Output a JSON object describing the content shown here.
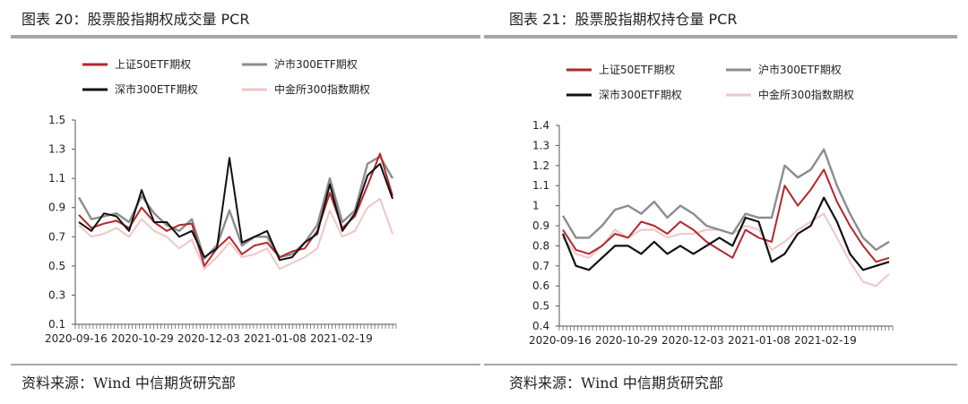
{
  "charts": [
    {
      "title": "图表 20：股票股指期权成交量 PCR",
      "source": "资料来源：Wind  中信期货研究部"
    },
    {
      "title": "图表 21：股票股指期权持仓量 PCR",
      "source": "资料来源：Wind  中信期货研究部"
    }
  ],
  "chart_data": [
    {
      "type": "line",
      "title": "图表 20：股票股指期权成交量 PCR",
      "ylim": [
        0.1,
        1.5
      ],
      "yticks": [
        "0.1",
        "0.3",
        "0.5",
        "0.7",
        "0.9",
        "1.1",
        "1.3",
        "1.5"
      ],
      "xticks": [
        "2020-09-16",
        "2020-10-29",
        "2020-12-03",
        "2021-01-08",
        "2021-02-19"
      ],
      "legend": "top, two columns",
      "grid": false,
      "x_count": 26,
      "series": [
        {
          "name": "上证50ETF期权",
          "color": "#b3272c",
          "width": 2,
          "values": [
            0.85,
            0.76,
            0.79,
            0.81,
            0.76,
            0.9,
            0.8,
            0.74,
            0.78,
            0.79,
            0.5,
            0.62,
            0.7,
            0.58,
            0.64,
            0.66,
            0.56,
            0.6,
            0.62,
            0.74,
            1.0,
            0.76,
            0.84,
            1.05,
            1.27,
            0.98
          ]
        },
        {
          "name": "沪市300ETF期权",
          "color": "#8c8c8c",
          "width": 2.4,
          "values": [
            0.97,
            0.82,
            0.84,
            0.86,
            0.8,
            0.98,
            0.86,
            0.78,
            0.74,
            0.82,
            0.55,
            0.64,
            0.88,
            0.64,
            0.7,
            0.7,
            0.56,
            0.58,
            0.66,
            0.78,
            1.1,
            0.8,
            0.88,
            1.2,
            1.25,
            1.1
          ]
        },
        {
          "name": "深市300ETF期权",
          "color": "#111111",
          "width": 2,
          "values": [
            0.8,
            0.74,
            0.86,
            0.84,
            0.74,
            1.02,
            0.8,
            0.8,
            0.7,
            0.74,
            0.56,
            0.62,
            1.24,
            0.66,
            0.7,
            0.74,
            0.54,
            0.56,
            0.66,
            0.72,
            1.06,
            0.74,
            0.86,
            1.12,
            1.2,
            0.96
          ]
        },
        {
          "name": "中金所300指数期权",
          "color": "#eec6c6",
          "width": 2,
          "values": [
            0.78,
            0.7,
            0.72,
            0.76,
            0.7,
            0.82,
            0.74,
            0.7,
            0.62,
            0.68,
            0.48,
            0.56,
            0.66,
            0.56,
            0.58,
            0.62,
            0.48,
            0.52,
            0.56,
            0.62,
            0.88,
            0.7,
            0.74,
            0.9,
            0.96,
            0.72
          ]
        }
      ]
    },
    {
      "type": "line",
      "title": "图表 21：股票股指期权持仓量 PCR",
      "ylim": [
        0.4,
        1.4
      ],
      "yticks": [
        "0.4",
        "0.5",
        "0.6",
        "0.7",
        "0.8",
        "0.9",
        "1",
        "1.1",
        "1.2",
        "1.3",
        "1.4"
      ],
      "xticks": [
        "2020-09-16",
        "2020-10-29",
        "2020-12-03",
        "2021-01-08",
        "2021-02-19"
      ],
      "legend": "top, two columns",
      "grid": false,
      "x_count": 26,
      "series": [
        {
          "name": "上证50ETF期权",
          "color": "#b3272c",
          "width": 2,
          "values": [
            0.88,
            0.78,
            0.76,
            0.8,
            0.86,
            0.84,
            0.92,
            0.9,
            0.86,
            0.92,
            0.88,
            0.82,
            0.78,
            0.74,
            0.88,
            0.84,
            0.82,
            1.1,
            1.0,
            1.08,
            1.18,
            1.02,
            0.9,
            0.8,
            0.72,
            0.74
          ]
        },
        {
          "name": "沪市300ETF期权",
          "color": "#8c8c8c",
          "width": 2.4,
          "values": [
            0.95,
            0.84,
            0.84,
            0.9,
            0.98,
            1.0,
            0.96,
            1.02,
            0.94,
            1.0,
            0.96,
            0.9,
            0.88,
            0.86,
            0.96,
            0.94,
            0.94,
            1.2,
            1.14,
            1.18,
            1.28,
            1.1,
            0.96,
            0.84,
            0.78,
            0.82
          ]
        },
        {
          "name": "深市300ETF期权",
          "color": "#111111",
          "width": 2.2,
          "values": [
            0.86,
            0.7,
            0.68,
            0.74,
            0.8,
            0.8,
            0.76,
            0.82,
            0.76,
            0.8,
            0.76,
            0.8,
            0.84,
            0.8,
            0.94,
            0.92,
            0.72,
            0.76,
            0.86,
            0.9,
            1.04,
            0.92,
            0.76,
            0.68,
            0.7,
            0.72
          ]
        },
        {
          "name": "中金所300指数期权",
          "color": "#eec6c6",
          "width": 2,
          "values": [
            0.84,
            0.76,
            0.74,
            0.8,
            0.88,
            0.84,
            0.88,
            0.88,
            0.84,
            0.86,
            0.86,
            0.88,
            0.88,
            0.86,
            0.9,
            0.88,
            0.78,
            0.82,
            0.88,
            0.92,
            0.96,
            0.84,
            0.72,
            0.62,
            0.6,
            0.66
          ]
        }
      ]
    }
  ]
}
